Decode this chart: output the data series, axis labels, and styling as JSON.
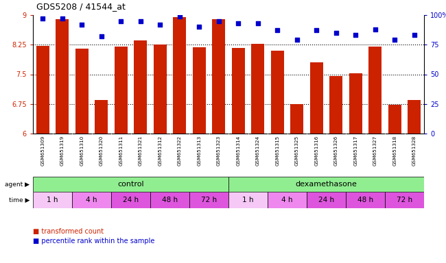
{
  "title": "GDS5208 / 41544_at",
  "samples": [
    "GSM651309",
    "GSM651319",
    "GSM651310",
    "GSM651320",
    "GSM651311",
    "GSM651321",
    "GSM651312",
    "GSM651322",
    "GSM651313",
    "GSM651323",
    "GSM651314",
    "GSM651324",
    "GSM651315",
    "GSM651325",
    "GSM651316",
    "GSM651326",
    "GSM651317",
    "GSM651327",
    "GSM651318",
    "GSM651328"
  ],
  "bar_values": [
    8.22,
    8.9,
    8.15,
    6.85,
    8.2,
    8.35,
    8.25,
    8.95,
    8.18,
    8.9,
    8.17,
    8.28,
    8.1,
    6.75,
    7.8,
    7.45,
    7.52,
    8.2,
    6.72,
    6.85
  ],
  "dot_values": [
    97,
    97,
    92,
    82,
    95,
    95,
    92,
    99,
    90,
    95,
    93,
    93,
    87,
    79,
    87,
    85,
    83,
    88,
    79,
    83
  ],
  "bar_color": "#cc2200",
  "dot_color": "#0000cc",
  "ylim_left": [
    6,
    9
  ],
  "ylim_right": [
    0,
    100
  ],
  "yticks_left": [
    6,
    6.75,
    7.5,
    8.25,
    9
  ],
  "yticks_right": [
    0,
    25,
    50,
    75,
    100
  ],
  "ytick_labels_right": [
    "0",
    "25",
    "50",
    "75",
    "100%"
  ],
  "hlines": [
    6.75,
    7.5,
    8.25
  ],
  "bg_color": "#ffffff",
  "plot_bg_color": "#ffffff",
  "label_color_left": "#cc2200",
  "label_color_right": "#0000cc",
  "sample_bg": "#d3d3d3",
  "agent_color": "#90ee90",
  "time_colors": [
    "#f5c8f5",
    "#ee88ee",
    "#dd55dd",
    "#dd55dd",
    "#dd55dd",
    "#f5c8f5",
    "#ee88ee",
    "#dd55dd",
    "#dd55dd",
    "#dd55dd"
  ],
  "time_labels": [
    "1 h",
    "4 h",
    "24 h",
    "48 h",
    "72 h",
    "1 h",
    "4 h",
    "24 h",
    "48 h",
    "72 h"
  ],
  "time_col_starts": [
    0,
    2,
    4,
    6,
    8,
    10,
    12,
    14,
    16,
    18
  ],
  "time_col_ends": [
    1,
    3,
    5,
    7,
    9,
    11,
    13,
    15,
    17,
    19
  ]
}
